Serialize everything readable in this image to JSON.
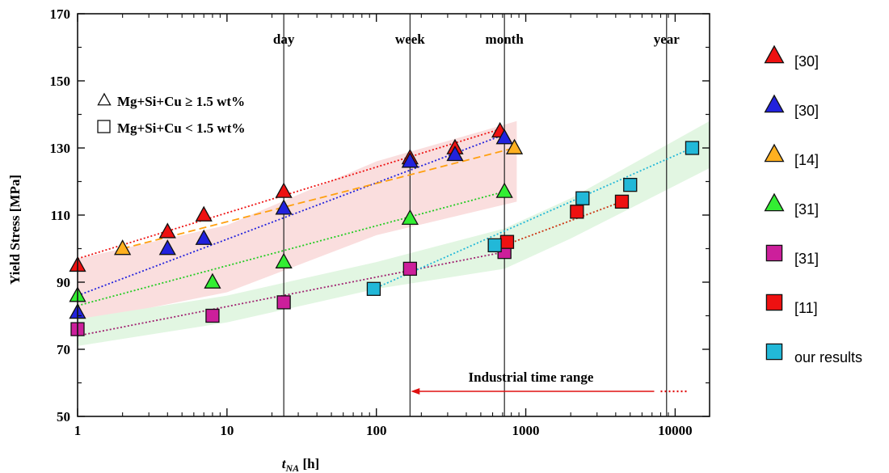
{
  "chart_data": {
    "type": "scatter",
    "xscale": "log",
    "xlim": [
      1,
      17000
    ],
    "ylim": [
      50,
      170
    ],
    "xlabel_main": "t",
    "xlabel_sub": "NA",
    "xlabel_unit": "[h]",
    "ylabel": "Yield Stress [MPa]",
    "xticks": [
      1,
      10,
      100,
      1000,
      10000
    ],
    "xtick_labels": [
      "1",
      "10",
      "100",
      "1000",
      "10000"
    ],
    "yticks": [
      50,
      70,
      90,
      110,
      130,
      150,
      170
    ],
    "ytick_labels": [
      "50",
      "70",
      "90",
      "110",
      "130",
      "150",
      "170"
    ],
    "grid": false,
    "vlines": [
      {
        "x": 24,
        "label": "day"
      },
      {
        "x": 168,
        "label": "week"
      },
      {
        "x": 720,
        "label": "month"
      },
      {
        "x": 8760,
        "label": "year"
      }
    ],
    "inset_legend": [
      {
        "marker": "triangle",
        "label": "Mg+Si+Cu ≥ 1.5 wt%"
      },
      {
        "marker": "square",
        "label": "Mg+Si+Cu < 1.5 wt%"
      }
    ],
    "annotation": {
      "text": "Industrial time range",
      "arrow_from": 8000,
      "arrow_to": 170,
      "dotted_to": 13000,
      "y": 57
    },
    "bands": [
      {
        "color": "#fadede",
        "upper": [
          [
            1,
            97
          ],
          [
            10,
            107
          ],
          [
            100,
            126
          ],
          [
            870,
            138
          ]
        ],
        "lower": [
          [
            1,
            78
          ],
          [
            10,
            87
          ],
          [
            100,
            104
          ],
          [
            870,
            114
          ]
        ]
      },
      {
        "color": "#e2f6e2",
        "upper": [
          [
            1,
            79
          ],
          [
            10,
            86
          ],
          [
            100,
            96
          ],
          [
            720,
            106
          ],
          [
            2000,
            115
          ],
          [
            17000,
            138
          ]
        ],
        "lower": [
          [
            1,
            71
          ],
          [
            10,
            78
          ],
          [
            100,
            88
          ],
          [
            720,
            94
          ],
          [
            2000,
            103
          ],
          [
            17000,
            124
          ]
        ]
      }
    ],
    "series": [
      {
        "name": "[30]",
        "marker": "triangle",
        "color": "#ee1111",
        "line_color": "#ee1111",
        "line": [
          [
            1,
            97
          ],
          [
            720,
            136
          ]
        ],
        "x": [
          1,
          4,
          7,
          24,
          168,
          336,
          672
        ],
        "y": [
          95,
          105,
          110,
          117,
          127,
          130,
          135
        ]
      },
      {
        "name": "[30]",
        "marker": "triangle",
        "color": "#2222dd",
        "line_color": "#2222dd",
        "line": [
          [
            1,
            86
          ],
          [
            720,
            134
          ]
        ],
        "x": [
          1,
          4,
          7,
          24,
          168,
          336,
          720
        ],
        "y": [
          81,
          100,
          103,
          112,
          126,
          128,
          133
        ]
      },
      {
        "name": "[14]",
        "marker": "triangle",
        "color": "#ffb020",
        "line_color": "#ffa010",
        "line": [
          [
            2,
            100
          ],
          [
            840,
            130
          ]
        ],
        "x": [
          2,
          840
        ],
        "y": [
          100,
          130
        ]
      },
      {
        "name": "[31]",
        "marker": "triangle",
        "color": "#33ee33",
        "line_color": "#22cc22",
        "line": [
          [
            1,
            83
          ],
          [
            720,
            117
          ]
        ],
        "x": [
          1,
          8,
          24,
          168,
          720
        ],
        "y": [
          86,
          90,
          96,
          109,
          117
        ]
      },
      {
        "name": "[31]",
        "marker": "square",
        "color": "#cc1f9b",
        "line_color": "#a02070",
        "line": [
          [
            1,
            74
          ],
          [
            720,
            99
          ]
        ],
        "x": [
          1,
          8,
          24,
          168,
          720
        ],
        "y": [
          76,
          80,
          84,
          94,
          99
        ]
      },
      {
        "name": "[11]",
        "marker": "square",
        "color": "#ee1111",
        "line_color": "#cc3311",
        "line": [
          [
            720,
            101
          ],
          [
            4400,
            114
          ]
        ],
        "x": [
          750,
          2200,
          4400
        ],
        "y": [
          102,
          111,
          114
        ]
      },
      {
        "name": "our results",
        "marker": "square",
        "color": "#22b8d8",
        "line_color": "#22b8d8",
        "line": [
          [
            96,
            88
          ],
          [
            13000,
            130
          ]
        ],
        "x": [
          96,
          620,
          2400,
          5000,
          13000
        ],
        "y": [
          88,
          101,
          115,
          119,
          130
        ]
      }
    ]
  }
}
